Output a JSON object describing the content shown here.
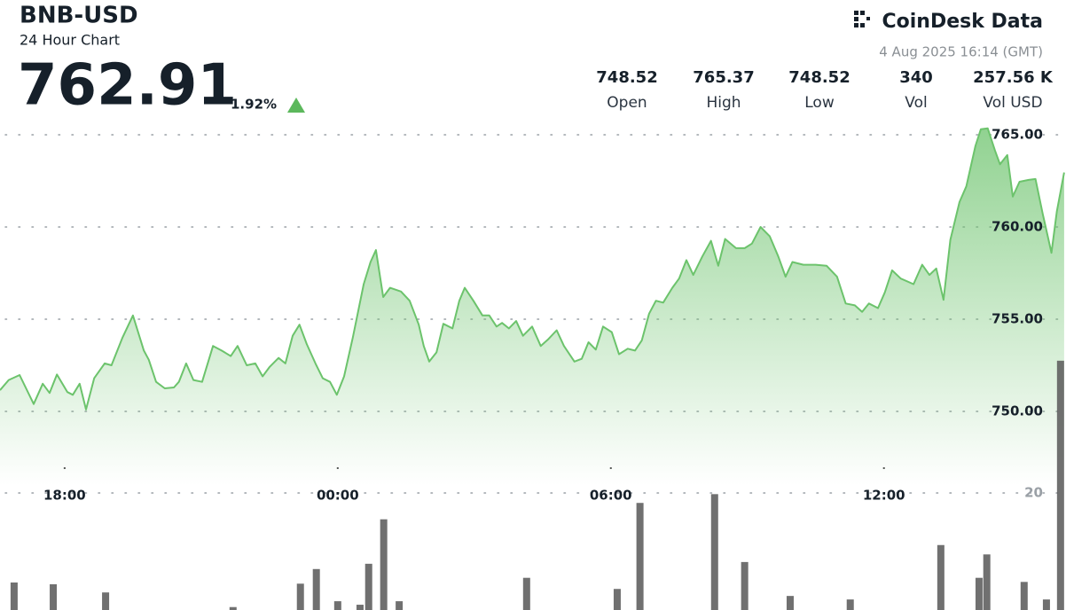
{
  "header": {
    "symbol": "BNB-USD",
    "subtitle": "24 Hour Chart",
    "price": "762.91",
    "change": "1.92%",
    "brand": "CoinDesk Data",
    "timestamp": "4 Aug 2025 16:14 (GMT)"
  },
  "stats": [
    {
      "value": "748.52",
      "label": "Open"
    },
    {
      "value": "765.37",
      "label": "High"
    },
    {
      "value": "748.52",
      "label": "Low"
    },
    {
      "value": "340",
      "label": "Vol"
    },
    {
      "value": "257.56 K",
      "label": "Vol USD"
    }
  ],
  "chart_data": [
    {
      "type": "area",
      "color": "#6cc36c",
      "x": [
        16.58,
        16.77,
        17.01,
        17.32,
        17.52,
        17.67,
        17.83,
        18.06,
        18.18,
        18.33,
        18.47,
        18.65,
        18.88,
        19.03,
        19.27,
        19.5,
        19.74,
        19.85,
        20.01,
        20.2,
        20.4,
        20.51,
        20.67,
        20.83,
        21.02,
        21.26,
        21.45,
        21.65,
        21.8,
        22.0,
        22.19,
        22.35,
        22.5,
        22.7,
        22.85,
        23.01,
        23.16,
        23.32,
        23.51,
        23.67,
        23.83,
        23.98,
        24.14,
        24.33,
        24.57,
        24.72,
        24.84,
        25.0,
        25.15,
        25.39,
        25.58,
        25.78,
        25.89,
        26.01,
        26.17,
        26.32,
        26.52,
        26.67,
        26.79,
        26.98,
        27.18,
        27.33,
        27.49,
        27.61,
        27.76,
        27.92,
        28.07,
        28.27,
        28.46,
        28.62,
        28.81,
        28.97,
        29.2,
        29.36,
        29.51,
        29.67,
        29.83,
        30.02,
        30.18,
        30.37,
        30.53,
        30.68,
        30.84,
        30.99,
        31.15,
        31.35,
        31.5,
        31.66,
        31.81,
        32.01,
        32.2,
        32.36,
        32.51,
        32.75,
        32.94,
        33.1,
        33.29,
        33.49,
        33.68,
        33.84,
        33.99,
        34.23,
        34.5,
        34.74,
        34.97,
        35.16,
        35.36,
        35.52,
        35.67,
        35.87,
        36.02,
        36.18,
        36.37,
        36.65,
        36.84,
        37.0,
        37.15,
        37.31,
        37.46,
        37.66,
        37.81,
        38.01,
        38.13,
        38.28,
        38.44,
        38.55,
        38.71,
        38.83,
        38.98,
        39.18,
        39.33,
        39.49,
        39.68,
        39.8,
        39.96
      ],
      "values": [
        751.15,
        751.7,
        751.97,
        750.4,
        751.5,
        751.0,
        752.0,
        751.05,
        750.9,
        751.5,
        750.1,
        751.8,
        752.6,
        752.5,
        754.0,
        755.2,
        753.3,
        752.8,
        751.6,
        751.25,
        751.3,
        751.6,
        752.6,
        751.7,
        751.6,
        753.55,
        753.3,
        753.0,
        753.55,
        752.5,
        752.6,
        751.9,
        752.4,
        752.9,
        752.6,
        754.1,
        754.7,
        753.65,
        752.6,
        751.8,
        751.6,
        750.9,
        751.9,
        754.0,
        756.9,
        758.1,
        758.75,
        756.2,
        756.7,
        756.5,
        756.0,
        754.7,
        753.55,
        752.7,
        753.2,
        754.75,
        754.5,
        756.0,
        756.7,
        756.0,
        755.2,
        755.2,
        754.6,
        754.8,
        754.5,
        754.9,
        754.1,
        754.6,
        753.55,
        753.9,
        754.4,
        753.55,
        752.7,
        752.85,
        753.75,
        753.35,
        754.6,
        754.3,
        753.1,
        753.4,
        753.3,
        753.85,
        755.3,
        756.0,
        755.9,
        756.7,
        757.2,
        758.2,
        757.4,
        758.4,
        759.25,
        757.9,
        759.35,
        758.85,
        758.85,
        759.1,
        760.0,
        759.5,
        758.4,
        757.3,
        758.1,
        757.95,
        757.95,
        757.9,
        757.3,
        755.85,
        755.75,
        755.4,
        755.85,
        755.6,
        756.45,
        757.65,
        757.2,
        756.9,
        757.95,
        757.4,
        757.75,
        756.05,
        759.3,
        761.35,
        762.2,
        764.4,
        765.3,
        765.35,
        764.15,
        763.4,
        763.9,
        761.65,
        762.45,
        762.55,
        762.6,
        760.7,
        758.6,
        760.85,
        762.95
      ],
      "xlim": [
        16.58,
        40.0
      ],
      "xticks": [
        {
          "value": 18,
          "label": "18:00"
        },
        {
          "value": 24,
          "label": "00:00"
        },
        {
          "value": 30,
          "label": "06:00"
        },
        {
          "value": 36,
          "label": "12:00"
        }
      ],
      "ylim": [
        746,
        765.6
      ],
      "yticks": [
        {
          "value": 750,
          "label": "750.00"
        },
        {
          "value": 755,
          "label": "755.00"
        },
        {
          "value": 760,
          "label": "760.00"
        },
        {
          "value": 765,
          "label": "765.00"
        }
      ],
      "grid": true
    },
    {
      "type": "bar",
      "color": "#616161",
      "x": [
        16.89,
        17.75,
        18.9,
        21.7,
        23.18,
        23.53,
        24.0,
        24.49,
        24.68,
        25.01,
        25.35,
        28.15,
        30.14,
        30.64,
        32.28,
        32.94,
        33.94,
        35.26,
        37.25,
        38.09,
        38.26,
        39.08,
        39.57,
        39.88
      ],
      "values": [
        4.7,
        4.4,
        3.0,
        0.5,
        4.5,
        7.0,
        1.5,
        0.9,
        7.9,
        15.5,
        1.5,
        5.5,
        3.6,
        18.3,
        19.8,
        8.2,
        2.4,
        1.8,
        11.1,
        5.5,
        9.5,
        4.8,
        1.8,
        42.6
      ],
      "xlim": [
        16.58,
        40.0
      ],
      "ylim": [
        0,
        43
      ],
      "yticks": [
        20
      ],
      "grid": true
    }
  ]
}
